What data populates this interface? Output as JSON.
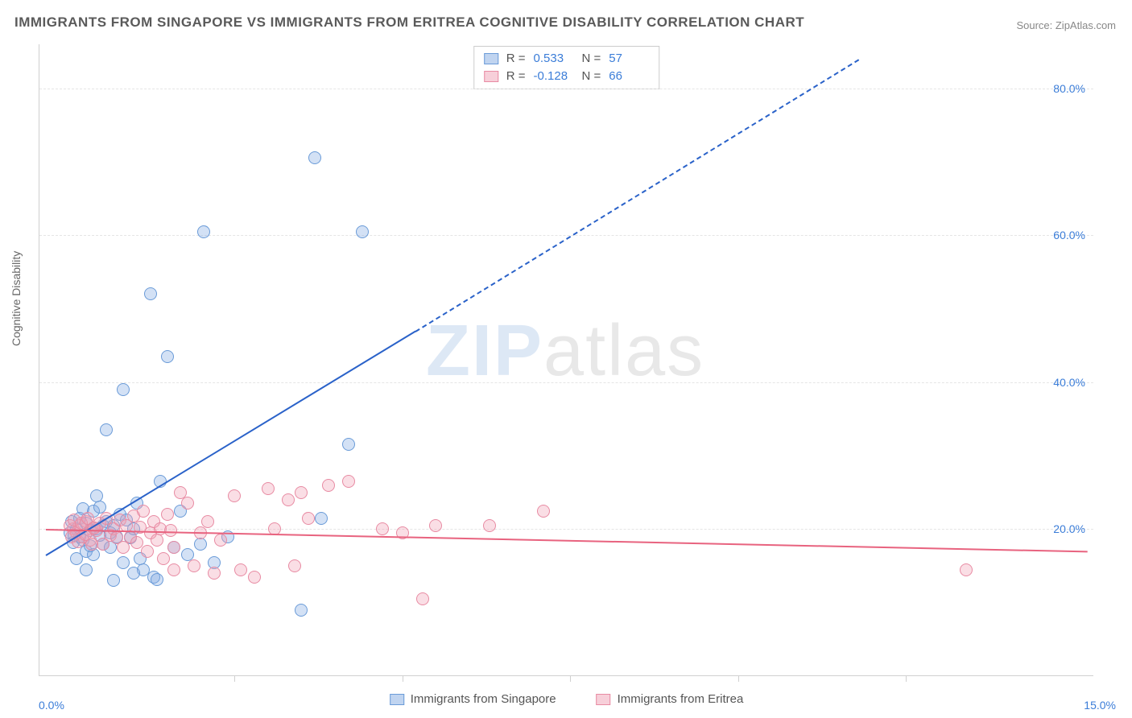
{
  "title": "IMMIGRANTS FROM SINGAPORE VS IMMIGRANTS FROM ERITREA COGNITIVE DISABILITY CORRELATION CHART",
  "source": "Source: ZipAtlas.com",
  "ylabel": "Cognitive Disability",
  "watermark": {
    "zip": "ZIP",
    "atlas": "atlas"
  },
  "chart": {
    "type": "scatter",
    "xlim": [
      -0.4,
      15.3
    ],
    "ylim": [
      0,
      86
    ],
    "xtick_labels": [
      "0.0%",
      "15.0%"
    ],
    "xtick_positions": [
      0,
      15
    ],
    "xtick_minor": [
      2.5,
      5,
      7.5,
      10,
      12.5
    ],
    "ytick_labels": [
      "20.0%",
      "40.0%",
      "60.0%",
      "80.0%"
    ],
    "ytick_positions": [
      20,
      40,
      60,
      80
    ],
    "grid_color": "#e5e5e5",
    "background": "#ffffff",
    "marker_radius": 8,
    "marker_border": 1.5,
    "series": [
      {
        "name": "Immigrants from Singapore",
        "color_fill": "rgba(130,170,225,0.35)",
        "color_stroke": "#6a9bd8",
        "r": 0.533,
        "n": 57,
        "reg_color": "#2a62c9",
        "reg_start": [
          -0.3,
          16.5
        ],
        "reg_solid_end": [
          5.2,
          47
        ],
        "reg_dash_end": [
          11.8,
          84
        ],
        "points": [
          [
            0.05,
            19.5
          ],
          [
            0.1,
            18.2
          ],
          [
            0.15,
            20.1
          ],
          [
            0.2,
            19.0
          ],
          [
            0.2,
            21.5
          ],
          [
            0.25,
            18.5
          ],
          [
            0.3,
            20.8
          ],
          [
            0.3,
            17.0
          ],
          [
            0.35,
            19.8
          ],
          [
            0.4,
            22.5
          ],
          [
            0.4,
            16.5
          ],
          [
            0.45,
            20.0
          ],
          [
            0.5,
            19.2
          ],
          [
            0.5,
            23.0
          ],
          [
            0.55,
            18.0
          ],
          [
            0.6,
            21.0
          ],
          [
            0.65,
            17.5
          ],
          [
            0.7,
            20.5
          ],
          [
            0.75,
            19.0
          ],
          [
            0.8,
            22.0
          ],
          [
            0.85,
            15.5
          ],
          [
            0.9,
            21.3
          ],
          [
            0.95,
            18.8
          ],
          [
            1.0,
            20.0
          ],
          [
            1.05,
            23.5
          ],
          [
            1.1,
            16.0
          ],
          [
            1.15,
            14.5
          ],
          [
            0.7,
            13.0
          ],
          [
            0.6,
            33.5
          ],
          [
            0.85,
            39.0
          ],
          [
            1.25,
            52.0
          ],
          [
            1.5,
            43.5
          ],
          [
            2.05,
            60.5
          ],
          [
            1.4,
            26.5
          ],
          [
            1.3,
            13.5
          ],
          [
            1.35,
            13.2
          ],
          [
            1.6,
            17.5
          ],
          [
            1.8,
            16.5
          ],
          [
            2.0,
            18.0
          ],
          [
            1.7,
            22.5
          ],
          [
            2.2,
            15.5
          ],
          [
            2.4,
            19.0
          ],
          [
            3.5,
            9.0
          ],
          [
            3.8,
            21.5
          ],
          [
            3.7,
            70.5
          ],
          [
            4.4,
            60.5
          ],
          [
            4.2,
            31.5
          ],
          [
            1.0,
            14.0
          ],
          [
            0.3,
            14.5
          ],
          [
            0.15,
            16.0
          ],
          [
            0.08,
            21.0
          ],
          [
            0.45,
            24.5
          ],
          [
            0.12,
            19.2
          ],
          [
            0.35,
            17.8
          ],
          [
            0.55,
            20.5
          ],
          [
            0.25,
            22.8
          ],
          [
            0.65,
            19.5
          ]
        ]
      },
      {
        "name": "Immigrants from Eritrea",
        "color_fill": "rgba(240,160,180,0.35)",
        "color_stroke": "#e88ba3",
        "r": -0.128,
        "n": 66,
        "reg_color": "#e8637f",
        "reg_start": [
          -0.3,
          20.0
        ],
        "reg_solid_end": [
          15.2,
          17.0
        ],
        "points": [
          [
            0.1,
            20.0
          ],
          [
            0.15,
            19.5
          ],
          [
            0.2,
            20.5
          ],
          [
            0.25,
            19.0
          ],
          [
            0.3,
            21.0
          ],
          [
            0.35,
            18.5
          ],
          [
            0.4,
            20.2
          ],
          [
            0.45,
            19.8
          ],
          [
            0.5,
            20.8
          ],
          [
            0.55,
            18.0
          ],
          [
            0.6,
            21.5
          ],
          [
            0.65,
            19.2
          ],
          [
            0.7,
            20.0
          ],
          [
            0.75,
            18.8
          ],
          [
            0.8,
            21.2
          ],
          [
            0.85,
            17.5
          ],
          [
            0.9,
            20.5
          ],
          [
            0.95,
            19.0
          ],
          [
            1.0,
            21.8
          ],
          [
            1.05,
            18.2
          ],
          [
            1.1,
            20.3
          ],
          [
            1.15,
            22.5
          ],
          [
            1.2,
            17.0
          ],
          [
            1.25,
            19.5
          ],
          [
            1.3,
            21.0
          ],
          [
            1.35,
            18.5
          ],
          [
            1.4,
            20.0
          ],
          [
            1.45,
            16.0
          ],
          [
            1.5,
            22.0
          ],
          [
            1.55,
            19.8
          ],
          [
            1.6,
            17.5
          ],
          [
            1.7,
            25.0
          ],
          [
            1.8,
            23.5
          ],
          [
            1.6,
            14.5
          ],
          [
            1.9,
            15.0
          ],
          [
            2.0,
            19.5
          ],
          [
            2.1,
            21.0
          ],
          [
            2.2,
            14.0
          ],
          [
            2.3,
            18.5
          ],
          [
            2.5,
            24.5
          ],
          [
            2.6,
            14.5
          ],
          [
            2.8,
            13.5
          ],
          [
            3.0,
            25.5
          ],
          [
            3.1,
            20.0
          ],
          [
            3.3,
            24.0
          ],
          [
            3.4,
            15.0
          ],
          [
            3.5,
            25.0
          ],
          [
            3.6,
            21.5
          ],
          [
            3.9,
            26.0
          ],
          [
            4.2,
            26.5
          ],
          [
            4.7,
            20.0
          ],
          [
            5.0,
            19.5
          ],
          [
            5.3,
            10.5
          ],
          [
            5.5,
            20.5
          ],
          [
            6.3,
            20.5
          ],
          [
            7.1,
            22.5
          ],
          [
            13.4,
            14.5
          ],
          [
            0.05,
            20.5
          ],
          [
            0.08,
            19.0
          ],
          [
            0.12,
            21.2
          ],
          [
            0.18,
            18.3
          ],
          [
            0.22,
            20.8
          ],
          [
            0.28,
            19.3
          ],
          [
            0.32,
            21.5
          ],
          [
            0.38,
            18.0
          ],
          [
            0.42,
            20.2
          ]
        ]
      }
    ]
  },
  "legend_top": {
    "rows": [
      {
        "swatch_fill": "rgba(130,170,225,0.5)",
        "swatch_stroke": "#6a9bd8",
        "r_label": "R =",
        "r_val": " 0.533",
        "n_label": "N =",
        "n_val": "57"
      },
      {
        "swatch_fill": "rgba(240,160,180,0.5)",
        "swatch_stroke": "#e88ba3",
        "r_label": "R =",
        "r_val": "-0.128",
        "n_label": "N =",
        "n_val": "66"
      }
    ]
  },
  "legend_bottom": {
    "items": [
      {
        "swatch_fill": "rgba(130,170,225,0.5)",
        "swatch_stroke": "#6a9bd8",
        "label": "Immigrants from Singapore"
      },
      {
        "swatch_fill": "rgba(240,160,180,0.5)",
        "swatch_stroke": "#e88ba3",
        "label": "Immigrants from Eritrea"
      }
    ]
  }
}
